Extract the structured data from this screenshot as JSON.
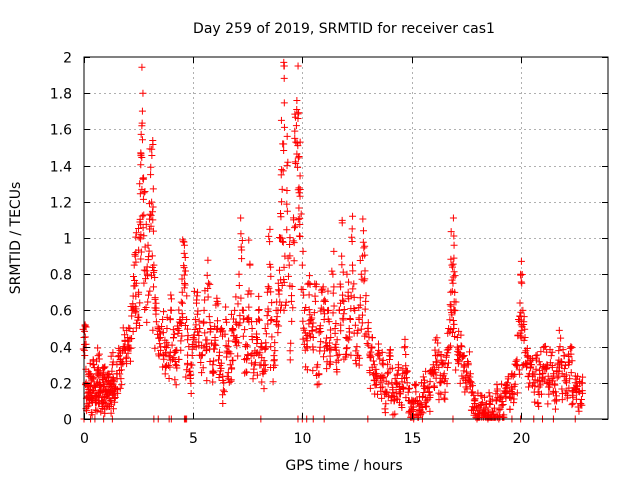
{
  "chart_data": {
    "type": "scatter",
    "title": "Day 259 of 2019, SRMTID for receiver cas1",
    "xlabel": "GPS time / hours",
    "ylabel": "SRMTID / TECUs",
    "xlim": [
      0,
      24
    ],
    "ylim": [
      0,
      2
    ],
    "xticks": [
      0,
      5,
      10,
      15,
      20
    ],
    "yticks": [
      0,
      0.2,
      0.4,
      0.6,
      0.8,
      1,
      1.2,
      1.4,
      1.6,
      1.8,
      2
    ],
    "ytick_labels": [
      "0",
      "0.2",
      "0.4",
      "0.6",
      "0.8",
      "1",
      "1.2",
      "1.4",
      "1.6",
      "1.8",
      "2"
    ],
    "xtick_labels": [
      "0",
      "5",
      "10",
      "15",
      "20"
    ],
    "grid": true,
    "marker": "+",
    "series_color": "#ff0000",
    "series": [
      {
        "name": "SRMTID",
        "points": [
          [
            0.0,
            0.45
          ],
          [
            0.05,
            0.52
          ],
          [
            0.1,
            0.2
          ],
          [
            0.15,
            0.12
          ],
          [
            0.2,
            0.18
          ],
          [
            0.25,
            0.25
          ],
          [
            0.3,
            0.15
          ],
          [
            0.35,
            0.1
          ],
          [
            0.4,
            0.22
          ],
          [
            0.45,
            0.3
          ],
          [
            0.5,
            0.18
          ],
          [
            0.55,
            0.12
          ],
          [
            0.6,
            0.25
          ],
          [
            0.65,
            0.35
          ],
          [
            0.7,
            0.2
          ],
          [
            0.75,
            0.15
          ],
          [
            0.8,
            0.1
          ],
          [
            0.85,
            0.22
          ],
          [
            0.9,
            0.28
          ],
          [
            0.95,
            0.18
          ],
          [
            1.0,
            0.12
          ],
          [
            1.05,
            0.2
          ],
          [
            1.1,
            0.25
          ],
          [
            1.15,
            0.15
          ],
          [
            1.2,
            0.1
          ],
          [
            1.25,
            0.18
          ],
          [
            1.3,
            0.3
          ],
          [
            1.35,
            0.22
          ],
          [
            1.4,
            0.15
          ],
          [
            1.5,
            0.25
          ],
          [
            1.6,
            0.35
          ],
          [
            1.7,
            0.3
          ],
          [
            1.8,
            0.4
          ],
          [
            1.9,
            0.38
          ],
          [
            2.0,
            0.45
          ],
          [
            2.1,
            0.5
          ],
          [
            2.2,
            0.6
          ],
          [
            2.3,
            0.85
          ],
          [
            2.35,
            0.9
          ],
          [
            2.4,
            0.75
          ],
          [
            2.5,
            0.7
          ],
          [
            2.55,
            1.3
          ],
          [
            2.6,
            1.47
          ],
          [
            2.65,
            1.62
          ],
          [
            2.7,
            1.8
          ],
          [
            2.75,
            1.25
          ],
          [
            2.8,
            0.95
          ],
          [
            2.9,
            0.8
          ],
          [
            3.0,
            1.05
          ],
          [
            3.05,
            1.35
          ],
          [
            3.1,
            1.49
          ],
          [
            3.15,
            1.1
          ],
          [
            3.2,
            0.85
          ],
          [
            3.3,
            0.6
          ],
          [
            3.4,
            0.5
          ],
          [
            3.5,
            0.45
          ],
          [
            3.6,
            0.55
          ],
          [
            3.7,
            0.4
          ],
          [
            3.8,
            0.5
          ],
          [
            3.9,
            0.35
          ],
          [
            4.0,
            0.6
          ],
          [
            4.1,
            0.45
          ],
          [
            4.2,
            0.3
          ],
          [
            4.3,
            0.5
          ],
          [
            4.4,
            0.55
          ],
          [
            4.5,
            0.7
          ],
          [
            4.55,
            0.98
          ],
          [
            4.6,
            0.96
          ],
          [
            4.7,
            0.55
          ],
          [
            4.8,
            0.4
          ],
          [
            4.9,
            0.3
          ],
          [
            5.0,
            0.45
          ],
          [
            5.1,
            0.55
          ],
          [
            5.2,
            0.7
          ],
          [
            5.3,
            0.5
          ],
          [
            5.4,
            0.35
          ],
          [
            5.5,
            0.6
          ],
          [
            5.6,
            0.4
          ],
          [
            5.7,
            0.75
          ],
          [
            5.8,
            0.5
          ],
          [
            5.9,
            0.3
          ],
          [
            6.0,
            0.45
          ],
          [
            6.1,
            0.65
          ],
          [
            6.2,
            0.35
          ],
          [
            6.3,
            0.5
          ],
          [
            6.4,
            0.2
          ],
          [
            6.5,
            0.55
          ],
          [
            6.6,
            0.4
          ],
          [
            6.7,
            0.3
          ],
          [
            6.8,
            0.5
          ],
          [
            6.9,
            0.6
          ],
          [
            7.0,
            0.45
          ],
          [
            7.1,
            0.8
          ],
          [
            7.2,
            0.95
          ],
          [
            7.3,
            0.6
          ],
          [
            7.4,
            0.4
          ],
          [
            7.5,
            0.55
          ],
          [
            7.6,
            0.85
          ],
          [
            7.7,
            0.5
          ],
          [
            7.8,
            0.3
          ],
          [
            7.9,
            0.45
          ],
          [
            8.0,
            0.6
          ],
          [
            8.1,
            0.4
          ],
          [
            8.2,
            0.25
          ],
          [
            8.3,
            0.5
          ],
          [
            8.4,
            0.7
          ],
          [
            8.5,
            0.98
          ],
          [
            8.6,
            0.55
          ],
          [
            8.7,
            0.35
          ],
          [
            8.8,
            0.6
          ],
          [
            8.9,
            0.75
          ],
          [
            9.0,
            1.0
          ],
          [
            9.05,
            1.2
          ],
          [
            9.1,
            1.52
          ],
          [
            9.15,
            1.97
          ],
          [
            9.2,
            0.9
          ],
          [
            9.3,
            1.4
          ],
          [
            9.4,
            0.85
          ],
          [
            9.5,
            0.65
          ],
          [
            9.6,
            1.1
          ],
          [
            9.7,
            1.53
          ],
          [
            9.75,
            1.76
          ],
          [
            9.8,
            1.66
          ],
          [
            9.85,
            1.25
          ],
          [
            9.9,
            1.53
          ],
          [
            10.0,
            0.85
          ],
          [
            10.1,
            0.6
          ],
          [
            10.2,
            0.4
          ],
          [
            10.3,
            0.75
          ],
          [
            10.4,
            0.55
          ],
          [
            10.5,
            0.45
          ],
          [
            10.6,
            0.65
          ],
          [
            10.7,
            0.3
          ],
          [
            10.8,
            0.5
          ],
          [
            10.9,
            0.7
          ],
          [
            11.0,
            0.55
          ],
          [
            11.1,
            0.4
          ],
          [
            11.2,
            0.6
          ],
          [
            11.3,
            0.45
          ],
          [
            11.4,
            0.8
          ],
          [
            11.5,
            0.5
          ],
          [
            11.6,
            0.35
          ],
          [
            11.7,
            0.6
          ],
          [
            11.8,
            0.9
          ],
          [
            11.9,
            0.65
          ],
          [
            12.0,
            0.45
          ],
          [
            12.1,
            0.7
          ],
          [
            12.2,
            0.55
          ],
          [
            12.3,
            1.12
          ],
          [
            12.4,
            0.6
          ],
          [
            12.5,
            0.4
          ],
          [
            12.6,
            0.55
          ],
          [
            12.7,
            0.8
          ],
          [
            12.8,
            1.04
          ],
          [
            12.9,
            0.65
          ],
          [
            13.0,
            0.5
          ],
          [
            13.1,
            0.35
          ],
          [
            13.2,
            0.45
          ],
          [
            13.3,
            0.3
          ],
          [
            13.4,
            0.25
          ],
          [
            13.5,
            0.35
          ],
          [
            13.6,
            0.2
          ],
          [
            13.7,
            0.3
          ],
          [
            13.8,
            0.15
          ],
          [
            13.9,
            0.25
          ],
          [
            14.0,
            0.35
          ],
          [
            14.1,
            0.2
          ],
          [
            14.2,
            0.1
          ],
          [
            14.3,
            0.2
          ],
          [
            14.4,
            0.3
          ],
          [
            14.5,
            0.15
          ],
          [
            14.6,
            0.25
          ],
          [
            14.7,
            0.4
          ],
          [
            14.8,
            0.2
          ],
          [
            14.9,
            0.1
          ],
          [
            15.0,
            0.05
          ],
          [
            15.1,
            0.1
          ],
          [
            15.2,
            0.15
          ],
          [
            15.3,
            0.02
          ],
          [
            15.4,
            0.08
          ],
          [
            15.5,
            0.12
          ],
          [
            15.6,
            0.2
          ],
          [
            15.7,
            0.1
          ],
          [
            15.8,
            0.15
          ],
          [
            15.9,
            0.25
          ],
          [
            16.0,
            0.3
          ],
          [
            16.1,
            0.35
          ],
          [
            16.2,
            0.42
          ],
          [
            16.3,
            0.2
          ],
          [
            16.4,
            0.3
          ],
          [
            16.5,
            0.25
          ],
          [
            16.6,
            0.35
          ],
          [
            16.7,
            0.5
          ],
          [
            16.8,
            0.7
          ],
          [
            16.85,
            0.85
          ],
          [
            16.9,
            0.75
          ],
          [
            16.95,
            0.96
          ],
          [
            17.0,
            0.6
          ],
          [
            17.1,
            0.45
          ],
          [
            17.2,
            0.35
          ],
          [
            17.3,
            0.4
          ],
          [
            17.4,
            0.3
          ],
          [
            17.5,
            0.2
          ],
          [
            17.6,
            0.3
          ],
          [
            17.7,
            0.25
          ],
          [
            17.8,
            0.15
          ],
          [
            17.9,
            0.1
          ],
          [
            18.0,
            0.06
          ],
          [
            18.1,
            0.05
          ],
          [
            18.2,
            0.08
          ],
          [
            18.3,
            0.03
          ],
          [
            18.4,
            0.06
          ],
          [
            18.5,
            0.05
          ],
          [
            18.6,
            0.08
          ],
          [
            18.7,
            0.04
          ],
          [
            18.8,
            0.06
          ],
          [
            18.9,
            0.1
          ],
          [
            19.0,
            0.05
          ],
          [
            19.1,
            0.12
          ],
          [
            19.2,
            0.08
          ],
          [
            19.3,
            0.15
          ],
          [
            19.4,
            0.2
          ],
          [
            19.5,
            0.12
          ],
          [
            19.6,
            0.25
          ],
          [
            19.7,
            0.18
          ],
          [
            19.8,
            0.3
          ],
          [
            19.9,
            0.55
          ],
          [
            20.0,
            0.8
          ],
          [
            20.05,
            0.75
          ],
          [
            20.1,
            0.6
          ],
          [
            20.2,
            0.45
          ],
          [
            20.3,
            0.35
          ],
          [
            20.4,
            0.25
          ],
          [
            20.5,
            0.3
          ],
          [
            20.6,
            0.2
          ],
          [
            20.7,
            0.35
          ],
          [
            20.8,
            0.15
          ],
          [
            20.9,
            0.3
          ],
          [
            21.0,
            0.25
          ],
          [
            21.1,
            0.4
          ],
          [
            21.2,
            0.3
          ],
          [
            21.3,
            0.2
          ],
          [
            21.4,
            0.35
          ],
          [
            21.5,
            0.25
          ],
          [
            21.6,
            0.15
          ],
          [
            21.7,
            0.3
          ],
          [
            21.8,
            0.4
          ],
          [
            21.9,
            0.25
          ],
          [
            22.0,
            0.35
          ],
          [
            22.1,
            0.2
          ],
          [
            22.2,
            0.3
          ],
          [
            22.3,
            0.4
          ],
          [
            22.4,
            0.15
          ],
          [
            22.5,
            0.2
          ],
          [
            22.6,
            0.18
          ],
          [
            22.7,
            0.15
          ],
          [
            22.8,
            0.2
          ]
        ],
        "zero_points_x": [
          0.0,
          0.3,
          0.5,
          0.9,
          1.3,
          3.2,
          3.4,
          3.9,
          4.0,
          4.6,
          4.65,
          4.7,
          8.1,
          9.8,
          10.0,
          10.2,
          10.5,
          11.0,
          13.0,
          15.1,
          15.5,
          16.9,
          18.0,
          18.5,
          19.0,
          19.6,
          20.0,
          20.6,
          21.0,
          21.5,
          22.5
        ]
      }
    ]
  }
}
